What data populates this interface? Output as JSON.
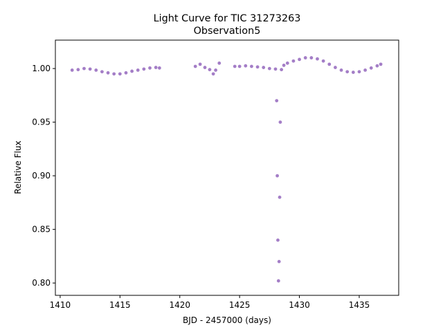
{
  "chart_data": {
    "type": "scatter",
    "title": "Light Curve for TIC 31273263",
    "subtitle": "Observation5",
    "xlabel": "BJD - 2457000 (days)",
    "ylabel": "Relative Flux",
    "xlim": [
      1409.6,
      1438.3
    ],
    "ylim": [
      0.7885,
      1.0265
    ],
    "xticks": [
      1410,
      1415,
      1420,
      1425,
      1430,
      1435
    ],
    "yticks": [
      0.8,
      0.85,
      0.9,
      0.95,
      1.0
    ],
    "grid": false,
    "legend": false,
    "marker_color": "#9467bd",
    "series": [
      {
        "points": [
          [
            1411.0,
            0.9985
          ],
          [
            1411.5,
            0.999
          ],
          [
            1412.0,
            1.0
          ],
          [
            1412.5,
            0.9995
          ],
          [
            1413.0,
            0.9985
          ],
          [
            1413.5,
            0.997
          ],
          [
            1414.0,
            0.996
          ],
          [
            1414.5,
            0.995
          ],
          [
            1415.0,
            0.995
          ],
          [
            1415.5,
            0.996
          ],
          [
            1416.0,
            0.9975
          ],
          [
            1416.5,
            0.9985
          ],
          [
            1417.0,
            0.9995
          ],
          [
            1417.5,
            1.0005
          ],
          [
            1418.0,
            1.001
          ],
          [
            1418.3,
            1.0005
          ],
          [
            1421.3,
            1.002
          ],
          [
            1421.7,
            1.004
          ],
          [
            1422.1,
            1.001
          ],
          [
            1422.5,
            0.999
          ],
          [
            1422.8,
            0.995
          ],
          [
            1423.0,
            0.9985
          ],
          [
            1423.3,
            1.005
          ],
          [
            1424.6,
            1.002
          ],
          [
            1425.0,
            1.002
          ],
          [
            1425.5,
            1.0025
          ],
          [
            1426.0,
            1.002
          ],
          [
            1426.5,
            1.0015
          ],
          [
            1427.0,
            1.001
          ],
          [
            1427.5,
            1.0
          ],
          [
            1428.0,
            0.9995
          ],
          [
            1428.1,
            0.97
          ],
          [
            1428.15,
            0.9
          ],
          [
            1428.2,
            0.84
          ],
          [
            1428.25,
            0.802
          ],
          [
            1428.3,
            0.82
          ],
          [
            1428.35,
            0.88
          ],
          [
            1428.4,
            0.95
          ],
          [
            1428.5,
            0.999
          ],
          [
            1428.7,
            1.003
          ],
          [
            1429.0,
            1.005
          ],
          [
            1429.5,
            1.007
          ],
          [
            1430.0,
            1.0085
          ],
          [
            1430.5,
            1.01
          ],
          [
            1431.0,
            1.01
          ],
          [
            1431.5,
            1.009
          ],
          [
            1432.0,
            1.007
          ],
          [
            1432.5,
            1.004
          ],
          [
            1433.0,
            1.001
          ],
          [
            1433.5,
            0.9985
          ],
          [
            1434.0,
            0.997
          ],
          [
            1434.5,
            0.9965
          ],
          [
            1435.0,
            0.997
          ],
          [
            1435.5,
            0.9985
          ],
          [
            1436.0,
            1.0005
          ],
          [
            1436.5,
            1.0025
          ],
          [
            1436.8,
            1.004
          ]
        ]
      }
    ]
  }
}
